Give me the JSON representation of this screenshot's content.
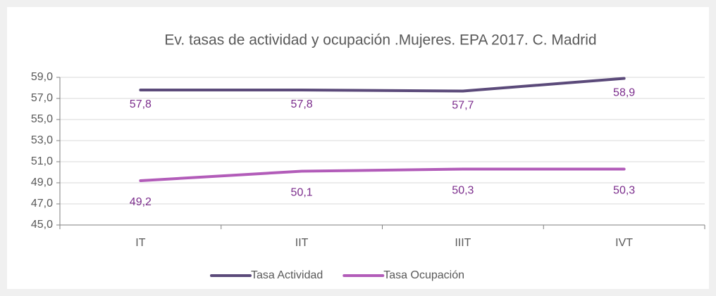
{
  "chart_data": {
    "type": "line",
    "title": "Ev. tasas de actividad y ocupación .Mujeres. EPA 2017. C. Madrid",
    "categories": [
      "IT",
      "IIT",
      "IIIT",
      "IVT"
    ],
    "series": [
      {
        "name": "Tasa Actividad",
        "color": "#5b4a7a",
        "values": [
          57.8,
          57.8,
          57.7,
          58.9
        ],
        "value_labels": [
          "57,8",
          "57,8",
          "57,7",
          "58,9"
        ]
      },
      {
        "name": "Tasa Ocupación",
        "color": "#b25cb9",
        "values": [
          49.2,
          50.1,
          50.3,
          50.3
        ],
        "value_labels": [
          "49,2",
          "50,1",
          "50,3",
          "50,3"
        ]
      }
    ],
    "ylim": [
      45,
      59
    ],
    "yticks": [
      {
        "value": 45,
        "label": "45,0"
      },
      {
        "value": 47,
        "label": "47,0"
      },
      {
        "value": 49,
        "label": "49,0"
      },
      {
        "value": 51,
        "label": "51,0"
      },
      {
        "value": 53,
        "label": "53,0"
      },
      {
        "value": 55,
        "label": "55,0"
      },
      {
        "value": 57,
        "label": "57,0"
      },
      {
        "value": 59,
        "label": "59,0"
      }
    ],
    "grid": true,
    "legend": "bottom"
  }
}
